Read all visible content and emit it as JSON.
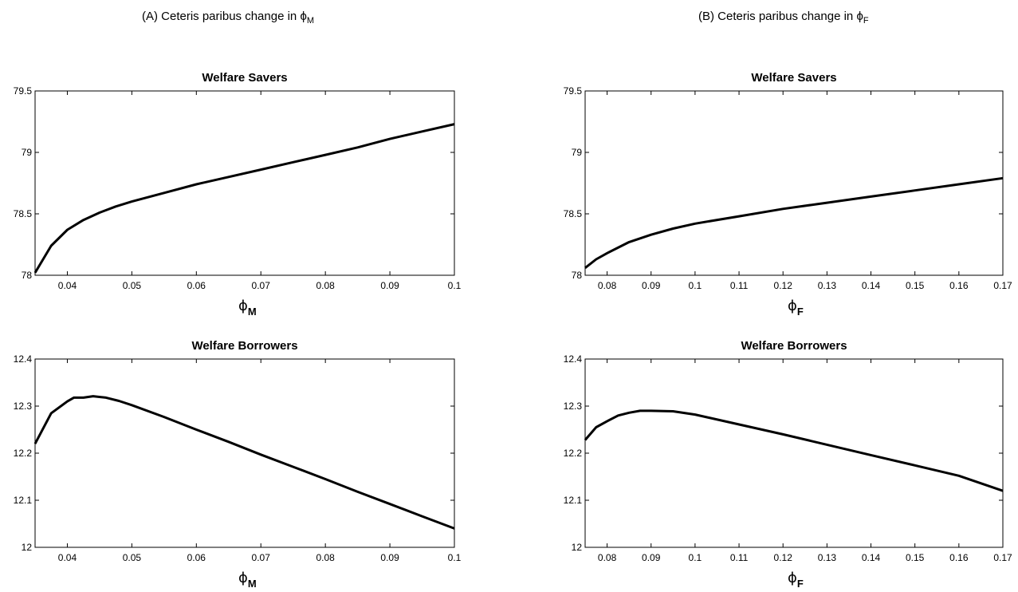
{
  "header": {
    "col_a_prefix": "(A) Ceteris paribus change in ",
    "col_a_symbol": "ϕ",
    "col_a_sub": "M",
    "col_b_prefix": "(B) Ceteris paribus change in ",
    "col_b_symbol": "ϕ",
    "col_b_sub": "F"
  },
  "chart_data": [
    {
      "id": "a_savers",
      "type": "line",
      "title": "Welfare Savers",
      "xlabel_symbol": "ϕ",
      "xlabel_sub": "M",
      "xlim": [
        0.035,
        0.1
      ],
      "ylim": [
        78,
        79.5
      ],
      "xticks": [
        0.04,
        0.05,
        0.06,
        0.07,
        0.08,
        0.09,
        0.1
      ],
      "xtick_labels": [
        "0.04",
        "0.05",
        "0.06",
        "0.07",
        "0.08",
        "0.09",
        "0.1"
      ],
      "yticks": [
        78,
        78.5,
        79,
        79.5
      ],
      "ytick_labels": [
        "78",
        "78.5",
        "79",
        "79.5"
      ],
      "x": [
        0.035,
        0.0375,
        0.04,
        0.0425,
        0.045,
        0.0475,
        0.05,
        0.055,
        0.06,
        0.065,
        0.07,
        0.075,
        0.08,
        0.085,
        0.09,
        0.095,
        0.1
      ],
      "y": [
        78.02,
        78.24,
        78.37,
        78.45,
        78.51,
        78.56,
        78.6,
        78.67,
        78.74,
        78.8,
        78.86,
        78.92,
        78.98,
        79.04,
        79.11,
        79.17,
        79.23
      ]
    },
    {
      "id": "b_savers",
      "type": "line",
      "title": "Welfare Savers",
      "xlabel_symbol": "ϕ",
      "xlabel_sub": "F",
      "xlim": [
        0.075,
        0.17
      ],
      "ylim": [
        78,
        79.5
      ],
      "xticks": [
        0.08,
        0.09,
        0.1,
        0.11,
        0.12,
        0.13,
        0.14,
        0.15,
        0.16,
        0.17
      ],
      "xtick_labels": [
        "0.08",
        "0.09",
        "0.1",
        "0.11",
        "0.12",
        "0.13",
        "0.14",
        "0.15",
        "0.16",
        "0.17"
      ],
      "yticks": [
        78,
        78.5,
        79,
        79.5
      ],
      "ytick_labels": [
        "78",
        "78.5",
        "79",
        "79.5"
      ],
      "x": [
        0.075,
        0.0775,
        0.08,
        0.085,
        0.09,
        0.095,
        0.1,
        0.11,
        0.12,
        0.13,
        0.14,
        0.15,
        0.16,
        0.17
      ],
      "y": [
        78.06,
        78.13,
        78.18,
        78.27,
        78.33,
        78.38,
        78.42,
        78.48,
        78.54,
        78.59,
        78.64,
        78.69,
        78.74,
        78.79
      ]
    },
    {
      "id": "a_borrowers",
      "type": "line",
      "title": "Welfare Borrowers",
      "xlabel_symbol": "ϕ",
      "xlabel_sub": "M",
      "xlim": [
        0.035,
        0.1
      ],
      "ylim": [
        12,
        12.4
      ],
      "xticks": [
        0.04,
        0.05,
        0.06,
        0.07,
        0.08,
        0.09,
        0.1
      ],
      "xtick_labels": [
        "0.04",
        "0.05",
        "0.06",
        "0.07",
        "0.08",
        "0.09",
        "0.1"
      ],
      "yticks": [
        12,
        12.1,
        12.2,
        12.3,
        12.4
      ],
      "ytick_labels": [
        "12",
        "12.1",
        "12.2",
        "12.3",
        "12.4"
      ],
      "x": [
        0.035,
        0.0375,
        0.04,
        0.041,
        0.0425,
        0.044,
        0.046,
        0.048,
        0.05,
        0.055,
        0.06,
        0.065,
        0.07,
        0.075,
        0.08,
        0.085,
        0.09,
        0.095,
        0.1
      ],
      "y": [
        12.22,
        12.285,
        12.31,
        12.318,
        12.318,
        12.321,
        12.318,
        12.311,
        12.302,
        12.277,
        12.25,
        12.224,
        12.197,
        12.171,
        12.145,
        12.118,
        12.092,
        12.066,
        12.04
      ]
    },
    {
      "id": "b_borrowers",
      "type": "line",
      "title": "Welfare Borrowers",
      "xlabel_symbol": "ϕ",
      "xlabel_sub": "F",
      "xlim": [
        0.075,
        0.17
      ],
      "ylim": [
        12,
        12.4
      ],
      "xticks": [
        0.08,
        0.09,
        0.1,
        0.11,
        0.12,
        0.13,
        0.14,
        0.15,
        0.16,
        0.17
      ],
      "xtick_labels": [
        "0.08",
        "0.09",
        "0.1",
        "0.11",
        "0.12",
        "0.13",
        "0.14",
        "0.15",
        "0.16",
        "0.17"
      ],
      "yticks": [
        12,
        12.1,
        12.2,
        12.3,
        12.4
      ],
      "ytick_labels": [
        "12",
        "12.1",
        "12.2",
        "12.3",
        "12.4"
      ],
      "x": [
        0.075,
        0.0775,
        0.08,
        0.0825,
        0.085,
        0.0875,
        0.09,
        0.095,
        0.1,
        0.11,
        0.12,
        0.13,
        0.14,
        0.15,
        0.16,
        0.17
      ],
      "y": [
        12.228,
        12.255,
        12.268,
        12.28,
        12.286,
        12.29,
        12.29,
        12.289,
        12.282,
        12.261,
        12.24,
        12.218,
        12.196,
        12.174,
        12.152,
        12.12
      ]
    }
  ]
}
